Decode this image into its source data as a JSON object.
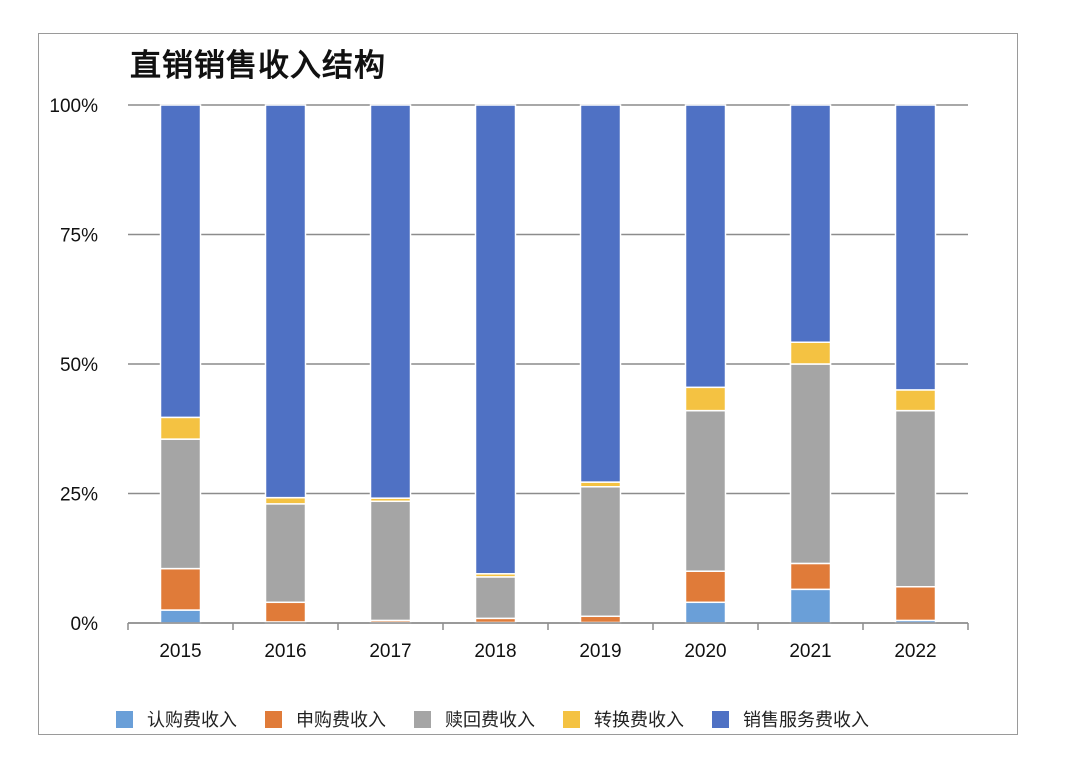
{
  "chart_data": {
    "type": "stacked-bar-100",
    "title": "直销销售收入结构",
    "categories": [
      "2015",
      "2016",
      "2017",
      "2018",
      "2019",
      "2020",
      "2021",
      "2022"
    ],
    "ylim": [
      0,
      100
    ],
    "yticks": [
      "0%",
      "25%",
      "50%",
      "75%",
      "100%"
    ],
    "ytick_values": [
      0,
      25,
      50,
      75,
      100
    ],
    "grid": true,
    "legend_position": "bottom",
    "series": [
      {
        "name": "认购费收入",
        "color": "#6a9fd8",
        "values": [
          2.5,
          0.2,
          0.1,
          0.1,
          0.1,
          4.0,
          6.5,
          0.5
        ]
      },
      {
        "name": "申购费收入",
        "color": "#e07b39",
        "values": [
          8.0,
          3.8,
          0.4,
          0.8,
          1.2,
          6.0,
          5.0,
          6.5
        ]
      },
      {
        "name": "赎回费收入",
        "color": "#a5a5a5",
        "values": [
          25.0,
          19.0,
          23.0,
          8.0,
          25.0,
          31.0,
          38.5,
          34.0
        ]
      },
      {
        "name": "转换费收入",
        "color": "#f4c242",
        "values": [
          4.2,
          1.2,
          0.6,
          0.6,
          0.9,
          4.5,
          4.2,
          4.0
        ]
      },
      {
        "name": "销售服务费收入",
        "color": "#4f71c4",
        "values": [
          60.3,
          75.8,
          75.9,
          90.5,
          72.8,
          54.5,
          45.8,
          55.0
        ]
      }
    ]
  }
}
